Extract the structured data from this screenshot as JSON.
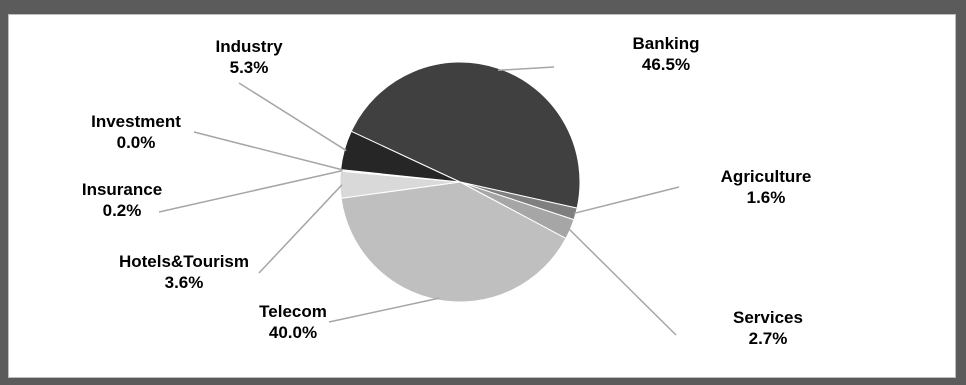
{
  "chart_data": {
    "type": "pie",
    "categories": [
      "Banking",
      "Agriculture",
      "Services",
      "Telecom",
      "Hotels&Tourism",
      "Insurance",
      "Investment",
      "Industry"
    ],
    "values": [
      46.5,
      1.6,
      2.7,
      40.0,
      3.6,
      0.2,
      0.0,
      5.3
    ],
    "value_labels": [
      "46.5%",
      "1.6%",
      "2.7%",
      "40.0%",
      "3.6%",
      "0.2%",
      "0.0%",
      "5.3%"
    ],
    "colors": [
      "#404040",
      "#7f7f7f",
      "#a6a6a6",
      "#bfbfbf",
      "#d9d9d9",
      "#f2f2f2",
      "#e8e8e8",
      "#262626"
    ],
    "leader_line_color": "#a6a6a6"
  }
}
